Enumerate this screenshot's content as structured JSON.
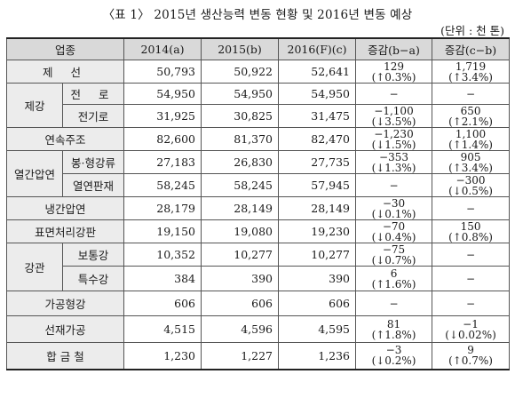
{
  "title": "〈표 1〉 2015년 생산능력 변동 현황 및 2016년 변동 예상",
  "unit": "(단위 : 천 톤)",
  "headers": [
    "업종",
    "2014(a)",
    "2015(b)",
    "2016(F)(c)",
    "증감(b−a)",
    "증감(c−b)"
  ],
  "rows": [
    {
      "group": "제 선",
      "sub": "",
      "v2014": "50,793",
      "v2015": "50,922",
      "v2016": "52,641",
      "ba1": "129",
      "ba2": "(↑0.3%)",
      "cb1": "1,719",
      "cb2": "(↑3.4%)"
    },
    {
      "group": "제강",
      "sub": "전 로",
      "v2014": "54,950",
      "v2015": "54,950",
      "v2016": "54,950",
      "ba1": "−",
      "ba2": "",
      "cb1": "−",
      "cb2": ""
    },
    {
      "group": "",
      "sub": "전기로",
      "v2014": "31,925",
      "v2015": "30,825",
      "v2016": "31,475",
      "ba1": "−1,100",
      "ba2": "(↓3.5%)",
      "cb1": "650",
      "cb2": "(↑2.1%)"
    },
    {
      "group": "연속주조",
      "sub": "",
      "v2014": "82,600",
      "v2015": "81,370",
      "v2016": "82,470",
      "ba1": "−1,230",
      "ba2": "(↓1.5%)",
      "cb1": "1,100",
      "cb2": "(↑1.4%)"
    },
    {
      "group": "열간압연",
      "sub": "봉·형강류",
      "v2014": "27,183",
      "v2015": "26,830",
      "v2016": "27,735",
      "ba1": "−353",
      "ba2": "(↓1.3%)",
      "cb1": "905",
      "cb2": "(↑3.4%)"
    },
    {
      "group": "",
      "sub": "열연판재",
      "v2014": "58,245",
      "v2015": "58,245",
      "v2016": "57,945",
      "ba1": "−",
      "ba2": "",
      "cb1": "−300",
      "cb2": "(↓0.5%)"
    },
    {
      "group": "냉간압연",
      "sub": "",
      "v2014": "28,179",
      "v2015": "28,149",
      "v2016": "28,149",
      "ba1": "−30",
      "ba2": "(↓0.1%)",
      "cb1": "−",
      "cb2": ""
    },
    {
      "group": "표면처리강판",
      "sub": "",
      "v2014": "19,150",
      "v2015": "19,080",
      "v2016": "19,230",
      "ba1": "−70",
      "ba2": "(↓0.4%)",
      "cb1": "150",
      "cb2": "(↑0.8%)"
    },
    {
      "group": "강관",
      "sub": "보통강",
      "v2014": "10,352",
      "v2015": "10,277",
      "v2016": "10,277",
      "ba1": "−75",
      "ba2": "(↓0.7%)",
      "cb1": "−",
      "cb2": ""
    },
    {
      "group": "",
      "sub": "특수강",
      "v2014": "384",
      "v2015": "390",
      "v2016": "390",
      "ba1": "6",
      "ba2": "(↑1.6%)",
      "cb1": "−",
      "cb2": ""
    },
    {
      "group": "가공형강",
      "sub": "",
      "v2014": "606",
      "v2015": "606",
      "v2016": "606",
      "ba1": "−",
      "ba2": "",
      "cb1": "−",
      "cb2": ""
    },
    {
      "group": "선재가공",
      "sub": "",
      "v2014": "4,515",
      "v2015": "4,596",
      "v2016": "4,595",
      "ba1": "81",
      "ba2": "(↑1.8%)",
      "cb1": "−1",
      "cb2": "(↓0.02%)"
    },
    {
      "group": "합 금 철",
      "sub": "",
      "v2014": "1,230",
      "v2015": "1,227",
      "v2016": "1,236",
      "ba1": "−3",
      "ba2": "(↓0.2%)",
      "cb1": "9",
      "cb2": "(↑0.7%)"
    }
  ]
}
